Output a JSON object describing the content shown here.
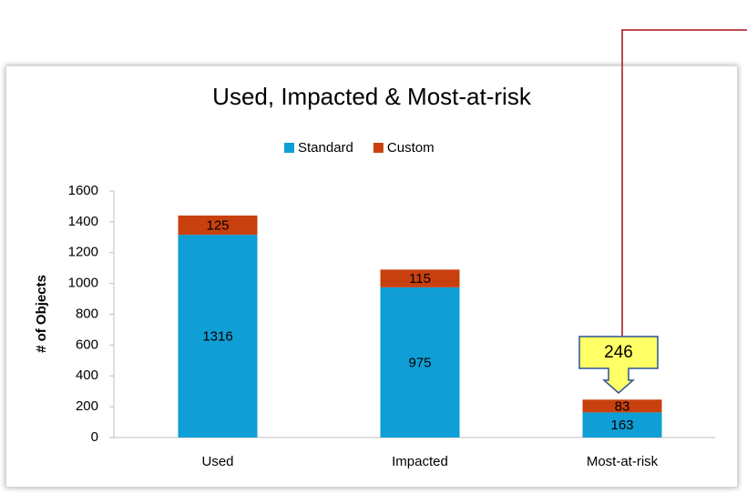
{
  "chart_data": {
    "type": "stacked_bar",
    "title": "Used, Impacted & Most-at-risk",
    "y_label": "# of Objects",
    "categories": [
      "Used",
      "Impacted",
      "Most-at-risk"
    ],
    "series": [
      {
        "name": "Standard",
        "color": "#0f9ed5",
        "values": [
          1316,
          975,
          163
        ]
      },
      {
        "name": "Custom",
        "color": "#c9400f",
        "values": [
          125,
          115,
          83
        ]
      }
    ],
    "ylim": [
      0,
      1600
    ],
    "yticks": [
      0,
      200,
      400,
      600,
      800,
      1000,
      1200,
      1400,
      1600
    ],
    "legend": "top",
    "annotation": "246"
  }
}
